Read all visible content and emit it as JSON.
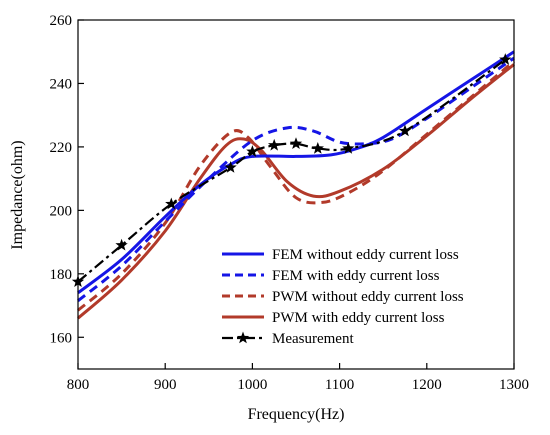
{
  "chart_data": {
    "type": "line",
    "title": "",
    "xlabel": "Frequency(Hz)",
    "ylabel": "Impedance(ohm)",
    "xlim": [
      800,
      1300
    ],
    "ylim": [
      150,
      260
    ],
    "xticks": [
      800,
      900,
      1000,
      1100,
      1200,
      1300
    ],
    "yticks": [
      160,
      180,
      200,
      220,
      240,
      260
    ],
    "grid": false,
    "legend_position": "bottom-right",
    "series": [
      {
        "name": "FEM  without eddy current loss",
        "color": "#1515e6",
        "style": "solid",
        "marker": "none",
        "x": [
          800,
          850,
          900,
          940,
          975,
          1000,
          1050,
          1090,
          1120,
          1150,
          1200,
          1250,
          1300
        ],
        "y": [
          174,
          184.5,
          198,
          208,
          214.5,
          217,
          217,
          217.5,
          219.5,
          223,
          232,
          241,
          250
        ]
      },
      {
        "name": "FEM with eddy current loss",
        "color": "#1515e6",
        "style": "dashed",
        "marker": "none",
        "x": [
          800,
          850,
          900,
          950,
          1000,
          1040,
          1070,
          1100,
          1130,
          1160,
          1200,
          1250,
          1300
        ],
        "y": [
          171.5,
          182.5,
          196.5,
          210,
          222,
          226,
          225,
          221.5,
          221,
          222.5,
          229,
          238.5,
          248
        ]
      },
      {
        "name": "PWM without eddy current loss",
        "color": "#b23a2a",
        "style": "dashed",
        "marker": "none",
        "x": [
          800,
          850,
          900,
          940,
          975,
          995,
          1020,
          1050,
          1080,
          1110,
          1150,
          1200,
          1250,
          1300
        ],
        "y": [
          168.5,
          180,
          196,
          214,
          224.5,
          223,
          214,
          204,
          202.5,
          205.5,
          212.5,
          224,
          235.5,
          247
        ]
      },
      {
        "name": "PWM with eddy current loss",
        "color": "#b23a2a",
        "style": "solid",
        "marker": "none",
        "x": [
          800,
          850,
          900,
          940,
          970,
          990,
          1010,
          1040,
          1070,
          1100,
          1150,
          1200,
          1250,
          1300
        ],
        "y": [
          166,
          178,
          193.5,
          210,
          220.5,
          222.5,
          219,
          209,
          204.5,
          206,
          213,
          223.5,
          235,
          246
        ]
      },
      {
        "name": "Measurement",
        "color": "#000000",
        "style": "dash-dot",
        "marker": "star",
        "x": [
          800,
          850,
          907,
          975,
          1000,
          1025,
          1050,
          1075,
          1110,
          1175,
          1290
        ],
        "y": [
          177.5,
          189,
          202,
          213.5,
          218.5,
          220.5,
          221,
          219.5,
          219.5,
          225,
          247.5
        ]
      }
    ]
  }
}
